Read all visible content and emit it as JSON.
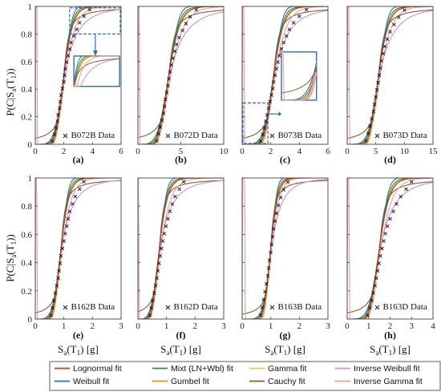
{
  "chart_data": {
    "type": "line",
    "y_axis_label": "P(C|Sa(T1))",
    "x_axis_label": "Sa(T1) [g]",
    "legend": {
      "placement": "bottom",
      "entries": [
        {
          "name": "Lognormal fit",
          "color": "#c0392b"
        },
        {
          "name": "Mixt (LN+Wbl) fit",
          "color": "#2e8b3a"
        },
        {
          "name": "Gamma fit",
          "color": "#e3cf3a"
        },
        {
          "name": "Inverse Weibull fit",
          "color": "#d58fd0"
        },
        {
          "name": "Weibull fit",
          "color": "#2a6fb8"
        },
        {
          "name": "Gumbel fit",
          "color": "#f28c1a"
        },
        {
          "name": "Cauchy fit",
          "color": "#8b5a2b"
        },
        {
          "name": "Inverse Gamma fit",
          "color": "#e8a0a0"
        }
      ]
    },
    "panels": [
      {
        "label": "(a)",
        "data_label": "B072B Data",
        "xlim": [
          0,
          6
        ],
        "xticks": [
          0,
          2,
          4,
          6
        ],
        "ylim": [
          0,
          1
        ],
        "yticks": [
          "0",
          "0.2",
          "0.4",
          "0.6",
          "0.8",
          "1"
        ],
        "median": 2.0,
        "dispersion": 0.25,
        "inset": "upper",
        "data_x": [
          1.2,
          1.35,
          1.45,
          1.55,
          1.6,
          1.7,
          1.75,
          1.8,
          1.9,
          2.0,
          2.05,
          2.1,
          2.2,
          2.3,
          2.4,
          2.5,
          2.7,
          2.9,
          3.1,
          3.4,
          3.8
        ]
      },
      {
        "label": "(b)",
        "data_label": "B072D Data",
        "xlim": [
          0,
          10
        ],
        "xticks": [
          0,
          5,
          10
        ],
        "ylim": [
          0,
          1
        ],
        "yticks": [],
        "median": 3.6,
        "dispersion": 0.28,
        "inset": "none",
        "data_x": [
          2.2,
          2.4,
          2.6,
          2.8,
          3.0,
          3.1,
          3.2,
          3.35,
          3.5,
          3.6,
          3.75,
          3.9,
          4.1,
          4.3,
          4.5,
          4.8,
          5.2,
          5.6,
          6.1,
          6.8
        ]
      },
      {
        "label": "(c)",
        "data_label": "B073B Data",
        "xlim": [
          0,
          6
        ],
        "xticks": [
          0,
          2,
          4,
          6
        ],
        "ylim": [
          0,
          1
        ],
        "yticks": [],
        "median": 2.2,
        "dispersion": 0.25,
        "inset": "lower",
        "data_x": [
          1.3,
          1.45,
          1.55,
          1.65,
          1.75,
          1.85,
          1.95,
          2.05,
          2.15,
          2.2,
          2.3,
          2.4,
          2.5,
          2.6,
          2.75,
          2.9,
          3.1,
          3.3,
          3.6,
          4.0,
          4.5
        ]
      },
      {
        "label": "(d)",
        "data_label": "B073D Data",
        "xlim": [
          0,
          15
        ],
        "xticks": [
          0,
          5,
          10,
          15
        ],
        "ylim": [
          0,
          1
        ],
        "yticks": [],
        "median": 5.5,
        "dispersion": 0.25,
        "inset": "none",
        "data_x": [
          3.3,
          3.7,
          4.0,
          4.3,
          4.6,
          4.8,
          5.0,
          5.2,
          5.4,
          5.6,
          5.8,
          6.0,
          6.3,
          6.6,
          7.0,
          7.5,
          8.2,
          9.0,
          10.0
        ]
      },
      {
        "label": "(e)",
        "data_label": "B162B Data",
        "xlim": [
          0,
          3
        ],
        "xticks": [
          0,
          1,
          2,
          3
        ],
        "ylim": [
          0,
          1
        ],
        "yticks": [
          "0",
          "0.2",
          "0.4",
          "0.6",
          "0.8",
          "1"
        ],
        "median": 0.9,
        "dispersion": 0.25,
        "inset": "none",
        "data_x": [
          0.55,
          0.6,
          0.65,
          0.7,
          0.75,
          0.8,
          0.83,
          0.87,
          0.9,
          0.95,
          1.0,
          1.05,
          1.1,
          1.15,
          1.2,
          1.3,
          1.4,
          1.55,
          1.7
        ]
      },
      {
        "label": "(f)",
        "data_label": "B162D Data",
        "xlim": [
          0,
          3
        ],
        "xticks": [
          0,
          1,
          2,
          3
        ],
        "ylim": [
          0,
          1
        ],
        "yticks": [],
        "median": 0.75,
        "dispersion": 0.3,
        "inset": "none",
        "data_x": [
          0.42,
          0.47,
          0.52,
          0.57,
          0.62,
          0.66,
          0.7,
          0.74,
          0.78,
          0.82,
          0.87,
          0.92,
          0.98,
          1.05,
          1.12,
          1.2,
          1.3,
          1.45,
          1.6
        ]
      },
      {
        "label": "(g)",
        "data_label": "B163B Data",
        "xlim": [
          0,
          3
        ],
        "xticks": [
          0,
          1,
          2,
          3
        ],
        "ylim": [
          0,
          1
        ],
        "yticks": [],
        "median": 1.0,
        "dispersion": 0.2,
        "inset": "none",
        "data_x": [
          0.65,
          0.7,
          0.75,
          0.8,
          0.85,
          0.9,
          0.93,
          0.96,
          1.0,
          1.03,
          1.07,
          1.1,
          1.15,
          1.2,
          1.27,
          1.35,
          1.45,
          1.6
        ]
      },
      {
        "label": "(h)",
        "data_label": "B163D Data",
        "xlim": [
          0,
          4
        ],
        "xticks": [
          0,
          1,
          2,
          3,
          4
        ],
        "ylim": [
          0,
          1
        ],
        "yticks": [],
        "median": 1.5,
        "dispersion": 0.25,
        "inset": "none",
        "data_x": [
          0.95,
          1.05,
          1.15,
          1.22,
          1.3,
          1.36,
          1.42,
          1.48,
          1.55,
          1.62,
          1.7,
          1.78,
          1.88,
          2.0,
          2.15,
          2.3,
          2.5,
          2.75,
          3.0
        ]
      }
    ]
  }
}
